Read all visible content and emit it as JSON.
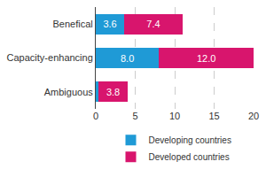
{
  "chart_data": {
    "type": "bar",
    "orientation": "horizontal",
    "stacked": true,
    "categories": [
      "Benefical",
      "Capacity-enhancing",
      "Ambiguous"
    ],
    "series": [
      {
        "name": "Developing countries",
        "color": "#1f9ad6",
        "values": [
          3.6,
          8.0,
          0.3
        ],
        "value_labels": [
          "3.6",
          "8.0",
          null
        ]
      },
      {
        "name": "Developed countries",
        "color": "#d8156d",
        "values": [
          7.4,
          12.0,
          3.8
        ],
        "value_labels": [
          "7.4",
          "12.0",
          "3.8"
        ]
      }
    ],
    "xlim": [
      0,
      20
    ],
    "xticks": [
      0,
      5,
      10,
      15,
      20
    ],
    "grid": true,
    "legend": "bottom",
    "data_labels": true
  }
}
